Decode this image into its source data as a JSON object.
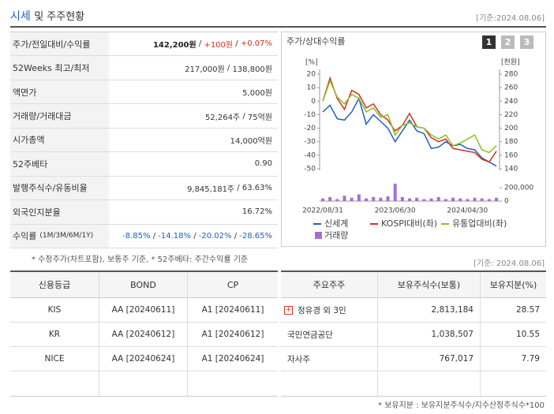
{
  "header": {
    "title_main": "시세",
    "title_rest": "및 주주현황",
    "date": "[기준:2024.08.06]"
  },
  "summary": {
    "separator": " / ",
    "rows": [
      {
        "label": "주가/전일대비/수익률",
        "values": [
          "142,200원",
          "+100원",
          "+0.07%"
        ]
      },
      {
        "label": "52Weeks 최고/최저",
        "values": [
          "217,000원",
          "138,800원"
        ]
      },
      {
        "label": "액면가",
        "values": [
          "5,000원"
        ]
      },
      {
        "label": "거래량/거래대금",
        "values": [
          "52,264주",
          "75억원"
        ]
      },
      {
        "label": "시가총액",
        "values": [
          "14,000억원"
        ]
      },
      {
        "label": "52주베타",
        "values": [
          "0.90"
        ]
      },
      {
        "label": "발행주식수/유동비율",
        "values": [
          "9,845,181주",
          "63.63%"
        ]
      },
      {
        "label": "외국인지분율",
        "values": [
          "16.72%"
        ]
      },
      {
        "label": "수익률",
        "sublabel": "(1M/3M/6M/1Y)",
        "values": [
          "-8.85%",
          "-14.18%",
          "-20.02%",
          "-28.65%"
        ]
      }
    ],
    "footnote": "* 수정주가(차트포함), 보통주 기준, * 52주베타: 주간수익률 기준"
  },
  "tabs": [
    "1",
    "2",
    "3"
  ],
  "chart_data": {
    "type": "line",
    "title": "주가/상대수익률",
    "categories": [
      "2022/08/31",
      null,
      null,
      null,
      null,
      null,
      null,
      null,
      null,
      null,
      "2023/06/30",
      null,
      null,
      null,
      null,
      null,
      null,
      null,
      null,
      null,
      "2024/04/30",
      null,
      null,
      null,
      null
    ],
    "y_unit": "[%]",
    "y2_unit": "[천원]",
    "ylim": [
      -50,
      20
    ],
    "yticks": [
      20,
      10,
      0,
      -10,
      -20,
      -30,
      -40,
      -50
    ],
    "y2lim": [
      140,
      280
    ],
    "y2ticks": [
      280,
      260,
      240,
      220,
      200,
      180,
      160,
      140
    ],
    "series": [
      {
        "name": "신세계",
        "color": "#1f5fbf",
        "axis": "y2",
        "values": [
          224,
          234,
          214,
          212,
          224,
          244,
          206,
          220,
          210,
          200,
          180,
          196,
          212,
          196,
          192,
          170,
          172,
          180,
          174,
          176,
          170,
          168,
          156,
          150,
          144
        ]
      },
      {
        "name": "KOSPI대비(좌)",
        "color": "#d2321e",
        "values": [
          0,
          17,
          2,
          -6,
          8,
          5,
          -5,
          -2,
          -10,
          -14,
          -22,
          -18,
          -9,
          -19,
          -20,
          -27,
          -30,
          -28,
          -35,
          -36,
          -37,
          -38,
          -43,
          -45,
          -37
        ]
      },
      {
        "name": "유통업대비(좌)",
        "color": "#8cbf26",
        "values": [
          0,
          15,
          3,
          -2,
          5,
          2,
          -8,
          -5,
          -12,
          -10,
          -25,
          -18,
          -16,
          -19,
          -20,
          -25,
          -28,
          -25,
          -33,
          -31,
          -28,
          -25,
          -36,
          -38,
          -33
        ]
      }
    ],
    "volume": {
      "name": "거래량",
      "color": "#a56fd6",
      "ylim": [
        0,
        300000
      ],
      "yticks": [
        {
          "value": 200000,
          "label": "200,000"
        },
        0
      ],
      "values": [
        40000,
        60000,
        30000,
        80000,
        50000,
        100000,
        40000,
        60000,
        50000,
        70000,
        260000,
        60000,
        40000,
        50000,
        30000,
        40000,
        60000,
        30000,
        50000,
        40000,
        30000,
        50000,
        40000,
        30000,
        50000
      ]
    }
  },
  "credit": {
    "header": [
      "신용등급",
      "BOND",
      "CP"
    ],
    "rows": [
      [
        "KIS",
        "AA [20240611]",
        "A1 [20240611]"
      ],
      [
        "KR",
        "AA [20240612]",
        "A1 [20240612]"
      ],
      [
        "NICE",
        "AA [20240624]",
        "A1 [20240624]"
      ]
    ]
  },
  "holders": {
    "date": "[기준: 2024.08.06]",
    "header": [
      "주요주주",
      "보유주식수(보통)",
      "보유지분(%)"
    ],
    "rows": [
      [
        "정유경 외 3인",
        "2,813,184",
        "28.57"
      ],
      [
        "국민연금공단",
        "1,038,507",
        "10.55"
      ],
      [
        "자사주",
        "767,017",
        "7.79"
      ]
    ],
    "footnote": "* 보유지분 : 보유지분주식수/지수산정주식수*100"
  }
}
